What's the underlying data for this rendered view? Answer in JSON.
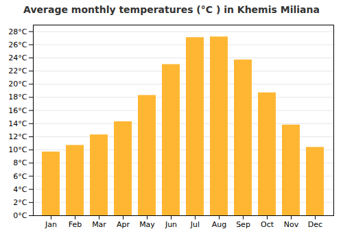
{
  "chart_data": {
    "type": "bar",
    "title": "Average monthly temperatures (°C ) in Khemis Miliana",
    "categories": [
      "Jan",
      "Feb",
      "Mar",
      "Apr",
      "May",
      "Jun",
      "Jul",
      "Aug",
      "Sep",
      "Oct",
      "Nov",
      "Dec"
    ],
    "values": [
      9.7,
      10.7,
      12.3,
      14.3,
      18.3,
      23.0,
      27.1,
      27.2,
      23.7,
      18.7,
      13.8,
      10.4
    ],
    "color": "#FFB733",
    "ylim": [
      0,
      29
    ],
    "yticks": [
      {
        "value": 0,
        "label": "0°C"
      },
      {
        "value": 2,
        "label": "2°C"
      },
      {
        "value": 4,
        "label": "4°C"
      },
      {
        "value": 6,
        "label": "6°C"
      },
      {
        "value": 8,
        "label": "8°C"
      },
      {
        "value": 10,
        "label": "10°C"
      },
      {
        "value": 12,
        "label": "12°C"
      },
      {
        "value": 14,
        "label": "14°C"
      },
      {
        "value": 16,
        "label": "16°C"
      },
      {
        "value": 18,
        "label": "18°C"
      },
      {
        "value": 20,
        "label": "20°C"
      },
      {
        "value": 22,
        "label": "22°C"
      },
      {
        "value": 24,
        "label": "24°C"
      },
      {
        "value": 26,
        "label": "26°C"
      },
      {
        "value": 28,
        "label": "28°C"
      }
    ],
    "grid": true
  }
}
